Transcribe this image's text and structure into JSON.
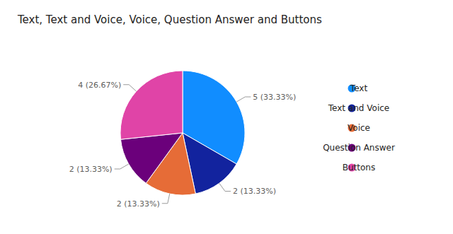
{
  "chart_data": {
    "type": "pie",
    "title": "Text, Text and Voice, Voice, Question Answer and Buttons",
    "categories": [
      "Text",
      "Text and Voice",
      "Voice",
      "Question Answer",
      "Buttons"
    ],
    "values": [
      5,
      2,
      2,
      2,
      4
    ],
    "value_labels": [
      "5 (33.33%)",
      "2 (13.33%)",
      "2 (13.33%)",
      "2 (13.33%)",
      "4 (26.67%)"
    ],
    "colors": [
      "#118DFF",
      "#12239E",
      "#E66C37",
      "#6B007B",
      "#E044A7"
    ],
    "data_labels": true,
    "legend": "right"
  }
}
